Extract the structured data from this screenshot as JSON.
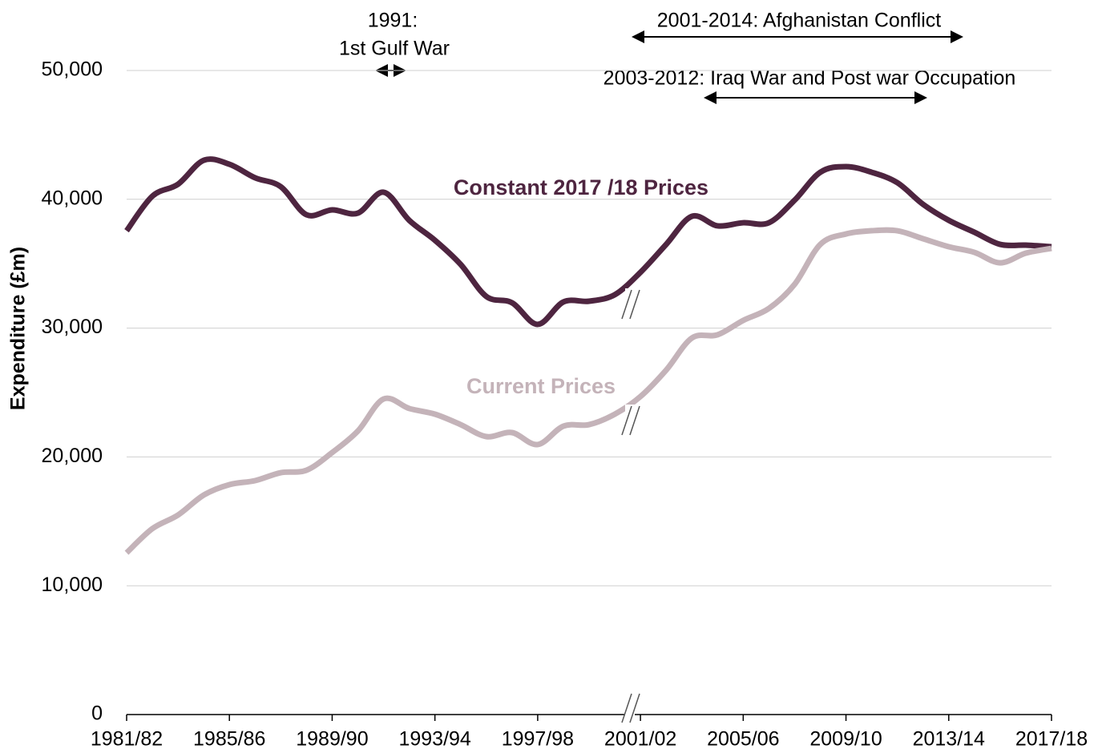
{
  "chart_data": {
    "type": "line",
    "ylabel": "Expenditure (£m)",
    "categories": [
      "1981/82",
      null,
      null,
      null,
      "1985/86",
      null,
      null,
      null,
      "1989/90",
      null,
      null,
      null,
      "1993/94",
      null,
      null,
      null,
      "1997/98",
      null,
      null,
      null,
      "2001/02",
      null,
      null,
      null,
      "2005/06",
      null,
      null,
      null,
      "2009/10",
      null,
      null,
      null,
      "2013/14",
      null,
      null,
      null,
      "2017/18"
    ],
    "series": [
      {
        "name": "Constant 2017 /18 Prices",
        "color": "#4e2540",
        "values": [
          37560,
          40240,
          41170,
          43030,
          42720,
          41670,
          40980,
          38800,
          39180,
          38930,
          40550,
          38370,
          36820,
          34950,
          32460,
          31970,
          30290,
          32030,
          32090,
          32590,
          34330,
          36500,
          38680,
          37940,
          38180,
          38180,
          39930,
          42100,
          42540,
          42100,
          41290,
          39610,
          38370,
          37440,
          36500,
          36440,
          36320
        ]
      },
      {
        "name": "Current Prices",
        "color": "#c4b3b9",
        "values": [
          12560,
          14430,
          15490,
          17040,
          17850,
          18160,
          18780,
          18970,
          20340,
          22010,
          24500,
          23760,
          23320,
          22510,
          21580,
          21890,
          20960,
          22390,
          22510,
          23320,
          24690,
          26740,
          29230,
          29480,
          30600,
          31530,
          33400,
          36500,
          37310,
          37560,
          37560,
          36940,
          36320,
          35880,
          35070,
          35820,
          36190
        ]
      }
    ],
    "ylim": [
      0,
      50000
    ],
    "yticks": [
      0,
      {
        "value": 10000,
        "label": "10,000"
      },
      {
        "value": 20000,
        "label": "20,000"
      },
      {
        "value": 30000,
        "label": "30,000"
      },
      {
        "value": 40000,
        "label": "40,000"
      },
      {
        "value": 50000,
        "label": "50,000"
      }
    ],
    "grid": true,
    "annotations": [
      "1991:",
      "1st Gulf War",
      "2001-2014: Afghanistan Conflict",
      "2003-2012: Iraq War and Post war Occupation"
    ]
  }
}
